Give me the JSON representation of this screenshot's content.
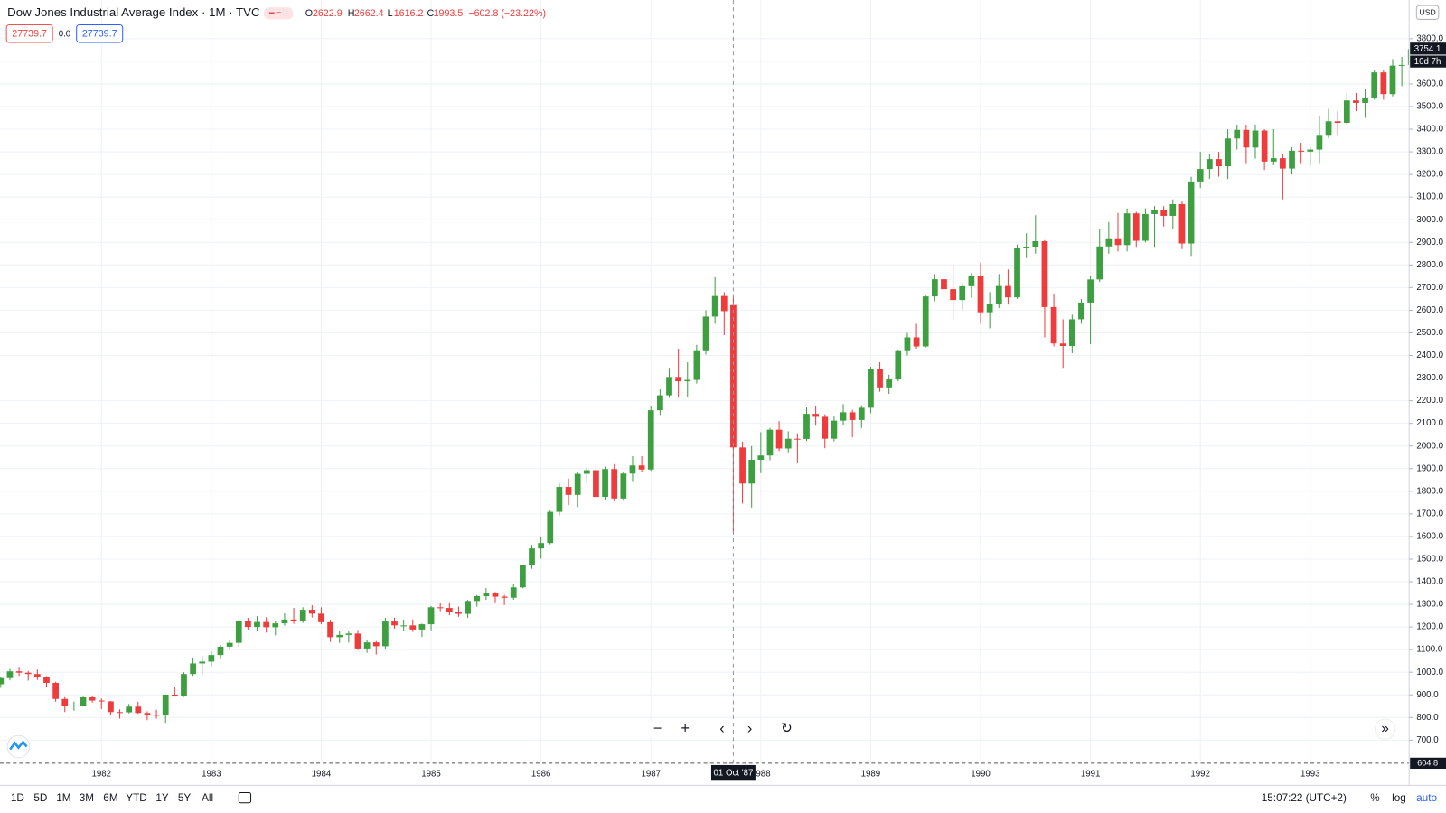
{
  "ui": {
    "symbol": "Dow Jones Industrial Average Index · 1M · TVC",
    "change_label": "−602.8 (−23.22%)",
    "bid": "27739.7",
    "spread": "0.0",
    "ask": "27739.7",
    "currency": "USD",
    "countdown": "10d 7h",
    "bottom_line_label": "604.8",
    "crosshair_label": "01 Oct '87",
    "ranges": [
      "1D",
      "5D",
      "1M",
      "3M",
      "6M",
      "YTD",
      "1Y",
      "5Y",
      "All"
    ],
    "clock": "15:07:22 (UTC+2)",
    "scale_buttons": [
      "%",
      "log",
      "auto"
    ]
  },
  "chart_data": {
    "type": "candlestick",
    "up_color": "#3d9f40",
    "down_color": "#ef3b3b",
    "grid": true,
    "last_price": 3754.1,
    "ylim": [
      598,
      3971
    ],
    "yticks": [
      {
        "value": 700,
        "label": "700.0"
      },
      {
        "value": 800,
        "label": "800.0"
      },
      {
        "value": 900,
        "label": "900.0"
      },
      {
        "value": 1000,
        "label": "1000.0"
      },
      {
        "value": 1100,
        "label": "1100.0"
      },
      {
        "value": 1200,
        "label": "1200.0"
      },
      {
        "value": 1300,
        "label": "1300.0"
      },
      {
        "value": 1400,
        "label": "1400.0"
      },
      {
        "value": 1500,
        "label": "1500.0"
      },
      {
        "value": 1600,
        "label": "1600.0"
      },
      {
        "value": 1700,
        "label": "1700.0"
      },
      {
        "value": 1800,
        "label": "1800.0"
      },
      {
        "value": 1900,
        "label": "1900.0"
      },
      {
        "value": 2000,
        "label": "2000.0"
      },
      {
        "value": 2100,
        "label": "2100.0"
      },
      {
        "value": 2200,
        "label": "2200.0"
      },
      {
        "value": 2300,
        "label": "2300.0"
      },
      {
        "value": 2400,
        "label": "2400.0"
      },
      {
        "value": 2500,
        "label": "2500.0"
      },
      {
        "value": 2600,
        "label": "2600.0"
      },
      {
        "value": 2700,
        "label": "2700.0"
      },
      {
        "value": 2800,
        "label": "2800.0"
      },
      {
        "value": 2900,
        "label": "2900.0"
      },
      {
        "value": 3000,
        "label": "3000.0"
      },
      {
        "value": 3100,
        "label": "3100.0"
      },
      {
        "value": 3200,
        "label": "3200.0"
      },
      {
        "value": 3300,
        "label": "3300.0"
      },
      {
        "value": 3400,
        "label": "3400.0"
      },
      {
        "value": 3500,
        "label": "3500.0"
      },
      {
        "value": 3600,
        "label": "3600.0"
      },
      {
        "value": 3700,
        "label": "3700.0"
      },
      {
        "value": 3800,
        "label": "3800.0"
      }
    ],
    "xticks": [
      {
        "value": "1982-01",
        "label": "1982"
      },
      {
        "value": "1983-01",
        "label": "1983"
      },
      {
        "value": "1984-01",
        "label": "1984"
      },
      {
        "value": "1985-01",
        "label": "1985"
      },
      {
        "value": "1986-01",
        "label": "1986"
      },
      {
        "value": "1987-01",
        "label": "1987"
      },
      {
        "value": "1988-01",
        "label": "1988"
      },
      {
        "value": "1989-01",
        "label": "1989"
      },
      {
        "value": "1990-01",
        "label": "1990"
      },
      {
        "value": "1991-01",
        "label": "1991"
      },
      {
        "value": "1992-01",
        "label": "1992"
      },
      {
        "value": "1993-01",
        "label": "1993"
      }
    ],
    "x": [
      "1981-02",
      "1981-03",
      "1981-04",
      "1981-05",
      "1981-06",
      "1981-07",
      "1981-08",
      "1981-09",
      "1981-10",
      "1981-11",
      "1981-12",
      "1982-01",
      "1982-02",
      "1982-03",
      "1982-04",
      "1982-05",
      "1982-06",
      "1982-07",
      "1982-08",
      "1982-09",
      "1982-10",
      "1982-11",
      "1982-12",
      "1983-01",
      "1983-02",
      "1983-03",
      "1983-04",
      "1983-05",
      "1983-06",
      "1983-07",
      "1983-08",
      "1983-09",
      "1983-10",
      "1983-11",
      "1983-12",
      "1984-01",
      "1984-02",
      "1984-03",
      "1984-04",
      "1984-05",
      "1984-06",
      "1984-07",
      "1984-08",
      "1984-09",
      "1984-10",
      "1984-11",
      "1984-12",
      "1985-01",
      "1985-02",
      "1985-03",
      "1985-04",
      "1985-05",
      "1985-06",
      "1985-07",
      "1985-08",
      "1985-09",
      "1985-10",
      "1985-11",
      "1985-12",
      "1986-01",
      "1986-02",
      "1986-03",
      "1986-04",
      "1986-05",
      "1986-06",
      "1986-07",
      "1986-08",
      "1986-09",
      "1986-10",
      "1986-11",
      "1986-12",
      "1987-01",
      "1987-02",
      "1987-03",
      "1987-04",
      "1987-05",
      "1987-06",
      "1987-07",
      "1987-08",
      "1987-09",
      "1987-10",
      "1987-11",
      "1987-12",
      "1988-01",
      "1988-02",
      "1988-03",
      "1988-04",
      "1988-05",
      "1988-06",
      "1988-07",
      "1988-08",
      "1988-09",
      "1988-10",
      "1988-11",
      "1988-12",
      "1989-01",
      "1989-02",
      "1989-03",
      "1989-04",
      "1989-05",
      "1989-06",
      "1989-07",
      "1989-08",
      "1989-09",
      "1989-10",
      "1989-11",
      "1989-12",
      "1990-01",
      "1990-02",
      "1990-03",
      "1990-04",
      "1990-05",
      "1990-06",
      "1990-07",
      "1990-08",
      "1990-09",
      "1990-10",
      "1990-11",
      "1990-12",
      "1991-01",
      "1991-02",
      "1991-03",
      "1991-04",
      "1991-05",
      "1991-06",
      "1991-07",
      "1991-08",
      "1991-09",
      "1991-10",
      "1991-11",
      "1991-12",
      "1992-01",
      "1992-02",
      "1992-03",
      "1992-04",
      "1992-05",
      "1992-06",
      "1992-07",
      "1992-08",
      "1992-09",
      "1992-10",
      "1992-11",
      "1992-12",
      "1993-01",
      "1993-02",
      "1993-03",
      "1993-04",
      "1993-05",
      "1993-06",
      "1993-07",
      "1993-08",
      "1993-09",
      "1993-10",
      "1993-11",
      "1993-12"
    ],
    "open": [
      947,
      974,
      1004,
      998,
      992,
      977,
      953,
      882,
      850,
      853,
      889,
      875,
      871,
      824,
      823,
      848,
      820,
      812,
      809,
      901,
      896,
      992,
      1039,
      1047,
      1076,
      1113,
      1130,
      1226,
      1200,
      1222,
      1199,
      1216,
      1233,
      1225,
      1276,
      1259,
      1221,
      1155,
      1165,
      1171,
      1105,
      1132,
      1115,
      1224,
      1207,
      1207,
      1189,
      1212,
      1287,
      1284,
      1267,
      1258,
      1315,
      1336,
      1348,
      1334,
      1329,
      1375,
      1472,
      1547,
      1571,
      1709,
      1819,
      1784,
      1877,
      1893,
      1775,
      1898,
      1768,
      1878,
      1914,
      1896,
      2158,
      2224,
      2305,
      2286,
      2292,
      2419,
      2572,
      2663,
      2622.9,
      1993.5,
      1834,
      1939,
      1958,
      2072,
      1989,
      2032,
      2031,
      2142,
      2129,
      2032,
      2112,
      2149,
      2115,
      2169,
      2342,
      2259,
      2294,
      2419,
      2480,
      2440,
      2661,
      2737,
      2693,
      2645,
      2706,
      2753,
      2591,
      2627,
      2707,
      2657,
      2877,
      2881,
      2905,
      2614,
      2453,
      2442,
      2560,
      2634,
      2736,
      2882,
      2914,
      2888,
      3028,
      2907,
      3025,
      3044,
      3017,
      3069,
      2895,
      3169,
      3224,
      3268,
      3236,
      3359,
      3397,
      3319,
      3394,
      3257,
      3272,
      3226,
      3305,
      3301,
      3310,
      3371,
      3435,
      3428,
      3527,
      3516,
      3540,
      3651,
      3555,
      3681,
      3684
    ],
    "high": [
      980,
      1015,
      1024,
      1005,
      1012,
      983,
      958,
      890,
      870,
      892,
      894,
      884,
      873,
      836,
      860,
      870,
      827,
      834,
      902,
      936,
      1000,
      1065,
      1072,
      1092,
      1121,
      1145,
      1232,
      1240,
      1248,
      1243,
      1225,
      1260,
      1284,
      1287,
      1296,
      1287,
      1232,
      1184,
      1180,
      1187,
      1141,
      1138,
      1240,
      1241,
      1232,
      1233,
      1215,
      1293,
      1307,
      1309,
      1290,
      1320,
      1341,
      1372,
      1355,
      1342,
      1390,
      1475,
      1563,
      1600,
      1715,
      1834,
      1856,
      1885,
      1906,
      1920,
      1909,
      1920,
      1885,
      1955,
      1955,
      2175,
      2250,
      2345,
      2430,
      2370,
      2447,
      2600,
      2746,
      2680,
      2662.4,
      2019,
      2000,
      2061,
      2080,
      2110,
      2065,
      2056,
      2170,
      2175,
      2140,
      2130,
      2185,
      2160,
      2180,
      2350,
      2370,
      2315,
      2425,
      2500,
      2540,
      2665,
      2760,
      2760,
      2800,
      2720,
      2765,
      2810,
      2680,
      2760,
      2780,
      2890,
      2940,
      3020,
      2910,
      2670,
      2560,
      2580,
      2650,
      2750,
      2960,
      2990,
      3030,
      3050,
      3035,
      3050,
      3060,
      3060,
      3090,
      3080,
      3190,
      3300,
      3290,
      3300,
      3400,
      3420,
      3420,
      3420,
      3400,
      3400,
      3290,
      3320,
      3340,
      3320,
      3460,
      3490,
      3480,
      3560,
      3560,
      3580,
      3660,
      3660,
      3710,
      3720,
      3800
    ],
    "low": [
      931,
      964,
      984,
      963,
      966,
      935,
      870,
      824,
      830,
      848,
      866,
      837,
      812,
      795,
      818,
      816,
      788,
      795,
      776,
      892,
      891,
      984,
      990,
      1027,
      1059,
      1100,
      1113,
      1189,
      1185,
      1175,
      1163,
      1206,
      1214,
      1218,
      1242,
      1212,
      1134,
      1130,
      1131,
      1098,
      1086,
      1078,
      1101,
      1193,
      1182,
      1178,
      1156,
      1185,
      1270,
      1252,
      1245,
      1240,
      1290,
      1320,
      1309,
      1297,
      1320,
      1371,
      1457,
      1502,
      1565,
      1693,
      1739,
      1730,
      1836,
      1763,
      1764,
      1755,
      1758,
      1841,
      1886,
      1890,
      2137,
      2213,
      2216,
      2215,
      2276,
      2404,
      2540,
      2490,
      1616.2,
      1746,
      1728,
      1880,
      1937,
      1978,
      1972,
      1925,
      2022,
      2090,
      1990,
      2020,
      2094,
      2038,
      2080,
      2145,
      2240,
      2230,
      2285,
      2400,
      2430,
      2435,
      2640,
      2650,
      2560,
      2600,
      2655,
      2540,
      2520,
      2610,
      2625,
      2650,
      2830,
      2850,
      2480,
      2440,
      2345,
      2410,
      2540,
      2450,
      2725,
      2850,
      2860,
      2860,
      2880,
      2900,
      2880,
      2970,
      2960,
      2870,
      2840,
      3140,
      3180,
      3190,
      3180,
      3310,
      3250,
      3270,
      3220,
      3240,
      3090,
      3200,
      3250,
      3240,
      3250,
      3360,
      3370,
      3420,
      3480,
      3450,
      3530,
      3530,
      3545,
      3590,
      3660
    ],
    "close": [
      974,
      1004,
      998,
      992,
      977,
      953,
      882,
      850,
      853,
      889,
      875,
      871,
      824,
      823,
      848,
      820,
      812,
      809,
      901,
      896,
      992,
      1039,
      1047,
      1076,
      1113,
      1130,
      1226,
      1200,
      1222,
      1199,
      1216,
      1233,
      1225,
      1276,
      1259,
      1221,
      1155,
      1165,
      1171,
      1105,
      1132,
      1115,
      1224,
      1207,
      1207,
      1189,
      1212,
      1287,
      1284,
      1267,
      1258,
      1315,
      1336,
      1348,
      1334,
      1329,
      1375,
      1472,
      1547,
      1571,
      1709,
      1819,
      1784,
      1877,
      1893,
      1775,
      1898,
      1768,
      1878,
      1914,
      1896,
      2158,
      2224,
      2305,
      2286,
      2292,
      2419,
      2572,
      2663,
      2596,
      1993.5,
      1834,
      1939,
      1958,
      2072,
      1989,
      2032,
      2031,
      2142,
      2129,
      2032,
      2112,
      2149,
      2115,
      2169,
      2342,
      2259,
      2294,
      2419,
      2480,
      2440,
      2661,
      2737,
      2693,
      2645,
      2706,
      2753,
      2591,
      2627,
      2707,
      2657,
      2877,
      2881,
      2905,
      2614,
      2453,
      2442,
      2560,
      2634,
      2736,
      2882,
      2914,
      2888,
      3028,
      2907,
      3025,
      3044,
      3017,
      3069,
      2895,
      3169,
      3224,
      3268,
      3236,
      3359,
      3397,
      3319,
      3394,
      3257,
      3272,
      3226,
      3305,
      3301,
      3310,
      3371,
      3435,
      3428,
      3527,
      3516,
      3540,
      3651,
      3555,
      3681,
      3684,
      3754
    ]
  }
}
